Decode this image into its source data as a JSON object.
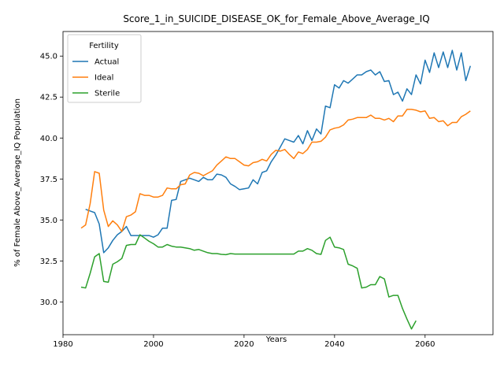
{
  "chart_data": {
    "type": "line",
    "title": "Score_1_in_SUICIDE_DISEASE_OK_for_Female_Above_Average_IQ",
    "xlabel": "Years",
    "ylabel": "% of Female Above_Average_IQ Population",
    "xlim": [
      1980,
      2075
    ],
    "ylim": [
      28.0,
      46.5
    ],
    "xticks": [
      1980,
      2000,
      2020,
      2040,
      2060
    ],
    "xtick_labels": [
      "1980",
      "2000",
      "2020",
      "2040",
      "2060"
    ],
    "yticks": [
      30.0,
      32.5,
      35.0,
      37.5,
      40.0,
      42.5,
      45.0
    ],
    "ytick_labels": [
      "30.0",
      "32.5",
      "35.0",
      "37.5",
      "40.0",
      "42.5",
      "45.0"
    ],
    "grid": false,
    "legend": {
      "title": "Fertility",
      "position": "upper-left"
    },
    "series": [
      {
        "name": "Actual",
        "color": "#1f77b4",
        "x": [
          1985,
          1986,
          1987,
          1988,
          1989,
          1990,
          1991,
          1992,
          1993,
          1994,
          1995,
          1996,
          1997,
          1998,
          1999,
          2000,
          2001,
          2002,
          2003,
          2004,
          2005,
          2006,
          2007,
          2008,
          2009,
          2010,
          2011,
          2012,
          2013,
          2014,
          2015,
          2016,
          2017,
          2018,
          2019,
          2020,
          2021,
          2022,
          2023,
          2024,
          2025,
          2026,
          2027,
          2028,
          2029,
          2030,
          2031,
          2032,
          2033,
          2034,
          2035,
          2036,
          2037,
          2038,
          2039,
          2040,
          2041,
          2042,
          2043,
          2044,
          2045,
          2046,
          2047,
          2048,
          2049,
          2050,
          2051,
          2052,
          2053,
          2054,
          2055,
          2056,
          2057,
          2058,
          2059,
          2060,
          2061,
          2062,
          2063,
          2064,
          2065,
          2066,
          2067,
          2068,
          2069,
          2070
        ],
        "y": [
          35.65,
          35.55,
          35.45,
          34.75,
          33.0,
          33.3,
          33.75,
          34.1,
          34.3,
          34.6,
          34.05,
          34.05,
          34.05,
          34.05,
          34.05,
          33.95,
          34.1,
          34.5,
          34.5,
          36.2,
          36.25,
          37.35,
          37.45,
          37.55,
          37.45,
          37.35,
          37.6,
          37.45,
          37.45,
          37.8,
          37.75,
          37.6,
          37.2,
          37.05,
          36.85,
          36.9,
          36.95,
          37.45,
          37.2,
          37.9,
          38.0,
          38.55,
          38.95,
          39.45,
          39.95,
          39.85,
          39.75,
          40.15,
          39.65,
          40.45,
          39.85,
          40.55,
          40.25,
          41.95,
          41.85,
          43.25,
          43.05,
          43.5,
          43.35,
          43.6,
          43.85,
          43.85,
          44.05,
          44.15,
          43.85,
          44.05,
          43.45,
          43.5,
          42.65,
          42.8,
          42.25,
          43.0,
          42.65,
          43.85,
          43.3,
          44.75,
          44.0,
          45.2,
          44.3,
          45.25,
          44.3,
          45.35,
          44.15,
          45.2,
          43.5,
          44.4
        ]
      },
      {
        "name": "Ideal",
        "color": "#ff7f0e",
        "x": [
          1984,
          1985,
          1986,
          1987,
          1988,
          1989,
          1990,
          1991,
          1992,
          1993,
          1994,
          1995,
          1996,
          1997,
          1998,
          1999,
          2000,
          2001,
          2002,
          2003,
          2004,
          2005,
          2006,
          2007,
          2008,
          2009,
          2010,
          2011,
          2012,
          2013,
          2014,
          2015,
          2016,
          2017,
          2018,
          2019,
          2020,
          2021,
          2022,
          2023,
          2024,
          2025,
          2026,
          2027,
          2028,
          2029,
          2030,
          2031,
          2032,
          2033,
          2034,
          2035,
          2036,
          2037,
          2038,
          2039,
          2040,
          2041,
          2042,
          2043,
          2044,
          2045,
          2046,
          2047,
          2048,
          2049,
          2050,
          2051,
          2052,
          2053,
          2054,
          2055,
          2056,
          2057,
          2058,
          2059,
          2060,
          2061,
          2062,
          2063,
          2064,
          2065,
          2066,
          2067,
          2068,
          2069,
          2070
        ],
        "y": [
          34.5,
          34.7,
          36.0,
          37.95,
          37.85,
          35.6,
          34.6,
          34.95,
          34.7,
          34.3,
          35.2,
          35.3,
          35.5,
          36.6,
          36.5,
          36.5,
          36.4,
          36.4,
          36.5,
          36.95,
          36.9,
          36.9,
          37.15,
          37.2,
          37.75,
          37.9,
          37.85,
          37.7,
          37.85,
          38.0,
          38.35,
          38.6,
          38.85,
          38.75,
          38.75,
          38.55,
          38.35,
          38.3,
          38.5,
          38.55,
          38.7,
          38.6,
          39.0,
          39.25,
          39.2,
          39.3,
          39.0,
          38.75,
          39.15,
          39.05,
          39.3,
          39.75,
          39.75,
          39.8,
          40.05,
          40.5,
          40.6,
          40.65,
          40.8,
          41.1,
          41.15,
          41.25,
          41.25,
          41.25,
          41.4,
          41.2,
          41.2,
          41.1,
          41.2,
          41.0,
          41.35,
          41.35,
          41.75,
          41.75,
          41.7,
          41.6,
          41.65,
          41.2,
          41.25,
          41.0,
          41.05,
          40.75,
          40.95,
          40.95,
          41.3,
          41.45,
          41.65
        ]
      },
      {
        "name": "Sterile",
        "color": "#2ca02c",
        "x": [
          1984,
          1985,
          1986,
          1987,
          1988,
          1989,
          1990,
          1991,
          1992,
          1993,
          1994,
          1995,
          1996,
          1997,
          1998,
          1999,
          2000,
          2001,
          2002,
          2003,
          2004,
          2005,
          2006,
          2007,
          2008,
          2009,
          2010,
          2011,
          2012,
          2013,
          2014,
          2015,
          2016,
          2017,
          2018,
          2019,
          2020,
          2021,
          2022,
          2023,
          2024,
          2025,
          2026,
          2027,
          2028,
          2029,
          2030,
          2031,
          2032,
          2033,
          2034,
          2035,
          2036,
          2037,
          2038,
          2039,
          2040,
          2041,
          2042,
          2043,
          2044,
          2045,
          2046,
          2047,
          2048,
          2049,
          2050,
          2051,
          2052,
          2053,
          2054,
          2055,
          2056,
          2057,
          2058
        ],
        "y": [
          30.9,
          30.85,
          31.75,
          32.75,
          32.95,
          31.25,
          31.2,
          32.3,
          32.45,
          32.65,
          33.45,
          33.5,
          33.5,
          34.1,
          33.9,
          33.7,
          33.55,
          33.35,
          33.35,
          33.5,
          33.4,
          33.35,
          33.35,
          33.3,
          33.25,
          33.15,
          33.2,
          33.1,
          33.0,
          32.95,
          32.95,
          32.9,
          32.88,
          32.95,
          32.92,
          32.92,
          32.92,
          32.92,
          32.92,
          32.92,
          32.92,
          32.92,
          32.92,
          32.92,
          32.92,
          32.92,
          32.92,
          32.92,
          33.1,
          33.1,
          33.25,
          33.15,
          32.95,
          32.9,
          33.75,
          33.95,
          33.35,
          33.3,
          33.2,
          32.3,
          32.2,
          32.05,
          30.85,
          30.9,
          31.05,
          31.05,
          31.55,
          31.4,
          30.3,
          30.4,
          30.4,
          29.6,
          28.95,
          28.35,
          28.85
        ]
      }
    ]
  }
}
